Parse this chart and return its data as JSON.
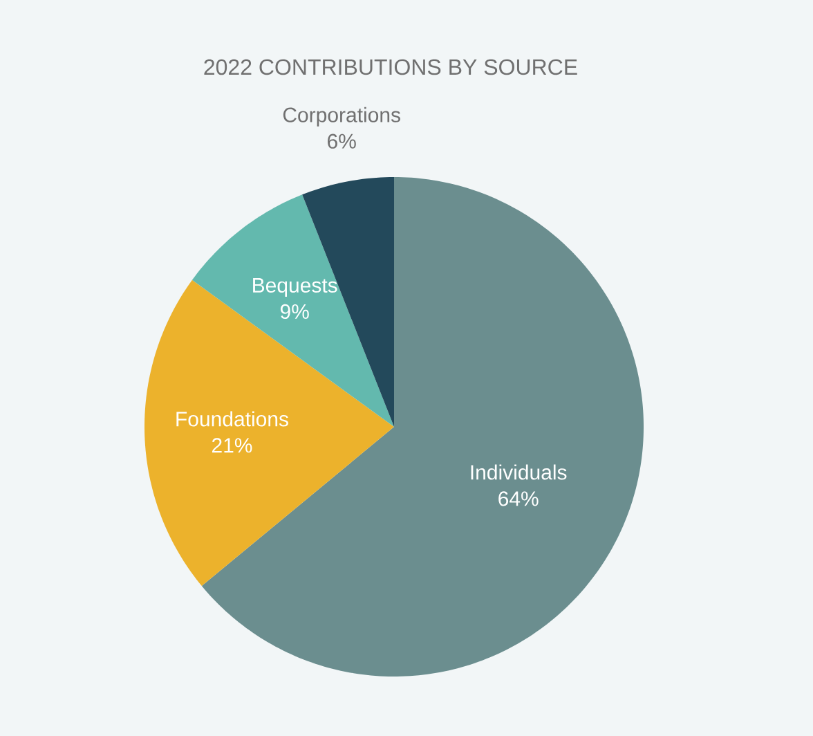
{
  "chart_data": {
    "type": "pie",
    "title": "2022 CONTRIBUTIONS BY SOURCE",
    "categories": [
      "Individuals",
      "Foundations",
      "Bequests",
      "Corporations"
    ],
    "values": [
      64,
      21,
      9,
      6
    ],
    "colors": [
      "#6b8e8f",
      "#ecb22c",
      "#63b9ae",
      "#23495b"
    ],
    "value_labels": [
      "64%",
      "21%",
      "9%",
      "6%"
    ]
  }
}
